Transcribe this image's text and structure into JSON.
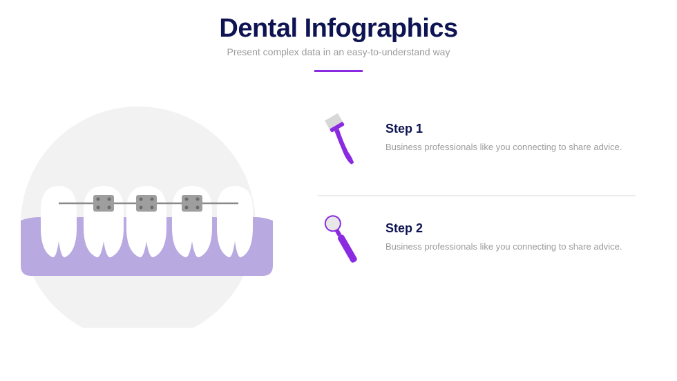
{
  "header": {
    "title": "Dental Infographics",
    "subtitle": "Present complex data in an easy-to-understand way",
    "title_color": "#0e1452",
    "subtitle_color": "#9b9b9b",
    "divider_color": "#8a2be2"
  },
  "illustration": {
    "circle_bg": "#f2f2f2",
    "gum_color": "#b8a9e0",
    "tooth_color": "#ffffff",
    "bracket_color": "#9e9e9e",
    "bracket_dot": "#6b6b6b",
    "wire_color": "#8a8a8a"
  },
  "steps": [
    {
      "title": "Step 1",
      "description": "Business professionals like you connecting to share advice.",
      "icon": "toothbrush",
      "icon_handle_color": "#8a2be2",
      "icon_bristle_color": "#d8d8d8"
    },
    {
      "title": "Step 2",
      "description": "Business professionals like you connecting to share advice.",
      "icon": "mirror",
      "icon_handle_color": "#8a2be2",
      "icon_mirror_color": "#e8e8e8"
    }
  ],
  "style": {
    "step_title_color": "#0e1452",
    "step_desc_color": "#9b9b9b",
    "step_divider_color": "#ececec"
  }
}
